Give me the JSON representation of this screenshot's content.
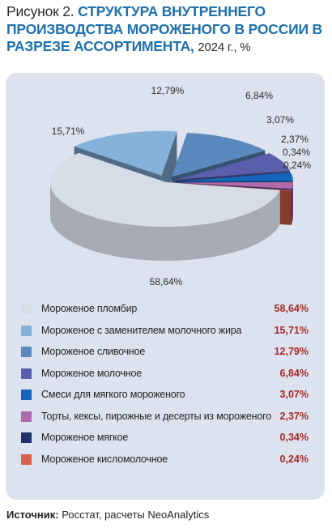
{
  "title": {
    "prefix": "Рисунок 2.",
    "main": "СТРУКТУРА ВНУТРЕННЕГО ПРОИЗВОДСТВА МОРОЖЕНОГО В РОССИИ В РАЗРЕЗЕ АССОРТИМЕНТА,",
    "unit": "2024 г., %"
  },
  "chart_data": {
    "type": "pie",
    "style": "3d-exploded",
    "categories": [
      "Мороженое пломбир",
      "Мороженое с заменителем молочного жира",
      "Мороженое сливочное",
      "Мороженое молочное",
      "Смеси для мягкого мороженого",
      "Торты, кексы, пирожные и десерты из мороженого",
      "Мороженое мягкое",
      "Мороженое кисломолочное"
    ],
    "values": [
      58.64,
      15.71,
      12.79,
      6.84,
      3.07,
      2.37,
      0.34,
      0.24
    ],
    "value_labels": [
      "58,64%",
      "15,71%",
      "12,79%",
      "6,84%",
      "3,07%",
      "2,37%",
      "0,34%",
      "0,24%"
    ],
    "colors": [
      "#d6dde7",
      "#86b2da",
      "#5a89bd",
      "#5a5fab",
      "#1565b8",
      "#b06aac",
      "#22306e",
      "#d8624d"
    ],
    "legend_position": "bottom"
  },
  "legend": [
    {
      "label": "Мороженое пломбир",
      "value": "58,64%",
      "color": "#d6dde7"
    },
    {
      "label": "Мороженое с заменителем молочного жира",
      "value": "15,71%",
      "color": "#86b2da"
    },
    {
      "label": "Мороженое сливочное",
      "value": "12,79%",
      "color": "#5a89bd"
    },
    {
      "label": "Мороженое молочное",
      "value": "6,84%",
      "color": "#5a5fab"
    },
    {
      "label": "Смеси для мягкого мороженого",
      "value": "3,07%",
      "color": "#1565b8"
    },
    {
      "label": "Торты, кексы, пирожные и десерты из мороженого",
      "value": "2,37%",
      "color": "#b06aac"
    },
    {
      "label": "Мороженое мягкое",
      "value": "0,34%",
      "color": "#22306e"
    },
    {
      "label": "Мороженое кисломолочное",
      "value": "0,24%",
      "color": "#d8624d"
    }
  ],
  "source": {
    "label": "Источник:",
    "text": "Росстат, расчеты NeoAnalytics"
  }
}
